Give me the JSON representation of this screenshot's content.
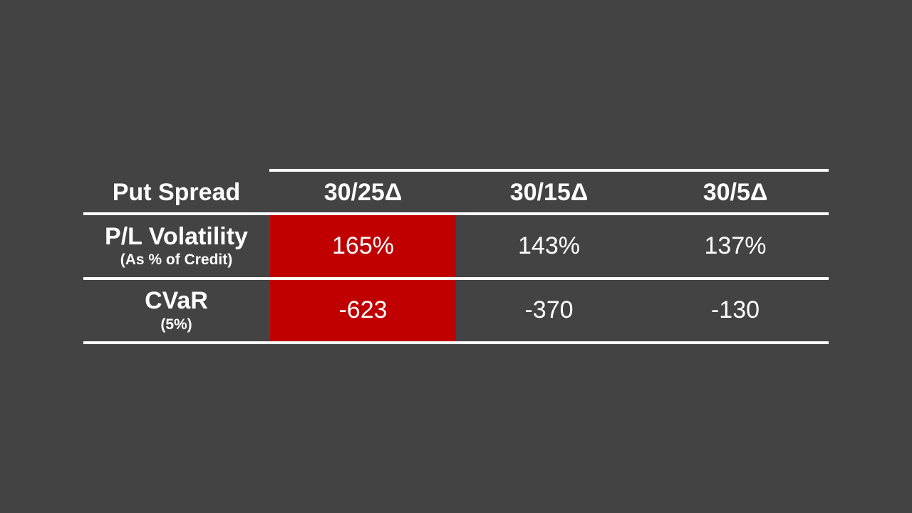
{
  "table": {
    "header": [
      "Put Spread",
      "30/25Δ",
      "30/15Δ",
      "30/5Δ"
    ],
    "rows": [
      {
        "title": "P/L Volatility",
        "subtitle": "(As % of Credit)",
        "values": [
          "165%",
          "143%",
          "137%"
        ]
      },
      {
        "title": "CVaR",
        "subtitle": "(5%)",
        "values": [
          "-623",
          "-370",
          "-130"
        ]
      }
    ]
  },
  "colors": {
    "background": "#434343",
    "highlight": "#c00000",
    "text": "#ffffff",
    "rules": "#ffffff"
  }
}
